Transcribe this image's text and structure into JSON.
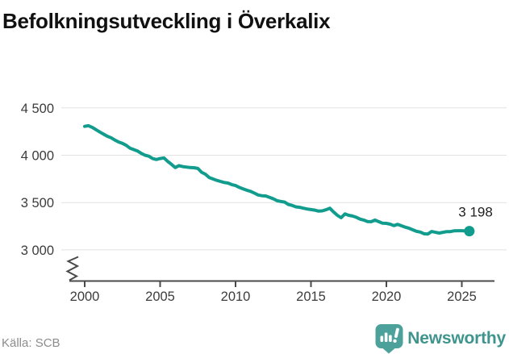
{
  "title": "Befolkningsutveckling i Överkalix",
  "source": "Källa: SCB",
  "branding": {
    "name": "Newsworthy",
    "badge_color": "#4ca29a",
    "wordmark_color": "#3f948d",
    "badge_icon": "bar-chart-exclamation-bubble"
  },
  "chart_data": {
    "type": "line",
    "title": "Befolkningsutveckling i Överkalix",
    "xlabel": "",
    "ylabel": "",
    "x_ticks": [
      2000,
      2005,
      2010,
      2015,
      2020,
      2025
    ],
    "y_ticks": [
      {
        "value": 4500,
        "label": "4 500"
      },
      {
        "value": 4000,
        "label": "4 000"
      },
      {
        "value": 3500,
        "label": "3 500"
      },
      {
        "value": 3000,
        "label": "3 000"
      }
    ],
    "ylim_shown": [
      3000,
      4500
    ],
    "xlim": [
      1998.5,
      2027.5
    ],
    "axis_break": true,
    "grid": "horizontal",
    "line_color": "#129c8e",
    "end_label": "3 198",
    "end_value": 3198,
    "series": [
      {
        "name": "Befolkning Överkalix",
        "points": [
          [
            2000.0,
            4305
          ],
          [
            2000.25,
            4312
          ],
          [
            2000.5,
            4295
          ],
          [
            2000.75,
            4270
          ],
          [
            2001.0,
            4245
          ],
          [
            2001.25,
            4222
          ],
          [
            2001.5,
            4200
          ],
          [
            2001.75,
            4185
          ],
          [
            2002.0,
            4160
          ],
          [
            2002.25,
            4140
          ],
          [
            2002.5,
            4125
          ],
          [
            2002.75,
            4105
          ],
          [
            2003.0,
            4075
          ],
          [
            2003.25,
            4060
          ],
          [
            2003.5,
            4045
          ],
          [
            2003.75,
            4020
          ],
          [
            2004.0,
            4000
          ],
          [
            2004.25,
            3990
          ],
          [
            2004.5,
            3965
          ],
          [
            2004.75,
            3955
          ],
          [
            2005.0,
            3965
          ],
          [
            2005.25,
            3972
          ],
          [
            2005.5,
            3935
          ],
          [
            2005.75,
            3905
          ],
          [
            2006.0,
            3870
          ],
          [
            2006.25,
            3890
          ],
          [
            2006.5,
            3880
          ],
          [
            2006.75,
            3875
          ],
          [
            2007.0,
            3870
          ],
          [
            2007.25,
            3868
          ],
          [
            2007.5,
            3860
          ],
          [
            2007.75,
            3820
          ],
          [
            2008.0,
            3800
          ],
          [
            2008.25,
            3765
          ],
          [
            2008.5,
            3750
          ],
          [
            2008.75,
            3735
          ],
          [
            2009.0,
            3723
          ],
          [
            2009.25,
            3712
          ],
          [
            2009.5,
            3706
          ],
          [
            2009.75,
            3690
          ],
          [
            2010.0,
            3680
          ],
          [
            2010.25,
            3660
          ],
          [
            2010.5,
            3645
          ],
          [
            2010.75,
            3630
          ],
          [
            2011.0,
            3618
          ],
          [
            2011.25,
            3600
          ],
          [
            2011.5,
            3580
          ],
          [
            2011.75,
            3572
          ],
          [
            2012.0,
            3570
          ],
          [
            2012.25,
            3555
          ],
          [
            2012.5,
            3540
          ],
          [
            2012.75,
            3520
          ],
          [
            2013.0,
            3512
          ],
          [
            2013.25,
            3505
          ],
          [
            2013.5,
            3480
          ],
          [
            2013.75,
            3470
          ],
          [
            2014.0,
            3455
          ],
          [
            2014.25,
            3450
          ],
          [
            2014.5,
            3440
          ],
          [
            2014.75,
            3432
          ],
          [
            2015.0,
            3426
          ],
          [
            2015.25,
            3420
          ],
          [
            2015.5,
            3410
          ],
          [
            2015.75,
            3412
          ],
          [
            2016.0,
            3424
          ],
          [
            2016.25,
            3440
          ],
          [
            2016.5,
            3400
          ],
          [
            2016.75,
            3365
          ],
          [
            2017.0,
            3340
          ],
          [
            2017.25,
            3380
          ],
          [
            2017.5,
            3365
          ],
          [
            2017.75,
            3358
          ],
          [
            2018.0,
            3345
          ],
          [
            2018.25,
            3325
          ],
          [
            2018.5,
            3315
          ],
          [
            2018.75,
            3300
          ],
          [
            2019.0,
            3298
          ],
          [
            2019.25,
            3315
          ],
          [
            2019.5,
            3298
          ],
          [
            2019.75,
            3282
          ],
          [
            2020.0,
            3280
          ],
          [
            2020.25,
            3272
          ],
          [
            2020.5,
            3256
          ],
          [
            2020.75,
            3270
          ],
          [
            2021.0,
            3255
          ],
          [
            2021.25,
            3240
          ],
          [
            2021.5,
            3228
          ],
          [
            2021.75,
            3212
          ],
          [
            2022.0,
            3196
          ],
          [
            2022.25,
            3188
          ],
          [
            2022.5,
            3170
          ],
          [
            2022.75,
            3168
          ],
          [
            2023.0,
            3194
          ],
          [
            2023.25,
            3186
          ],
          [
            2023.5,
            3178
          ],
          [
            2023.75,
            3186
          ],
          [
            2024.0,
            3193
          ],
          [
            2024.25,
            3193
          ],
          [
            2024.5,
            3202
          ],
          [
            2024.75,
            3203
          ],
          [
            2025.0,
            3203
          ],
          [
            2025.25,
            3200
          ],
          [
            2025.5,
            3198
          ]
        ]
      }
    ]
  }
}
